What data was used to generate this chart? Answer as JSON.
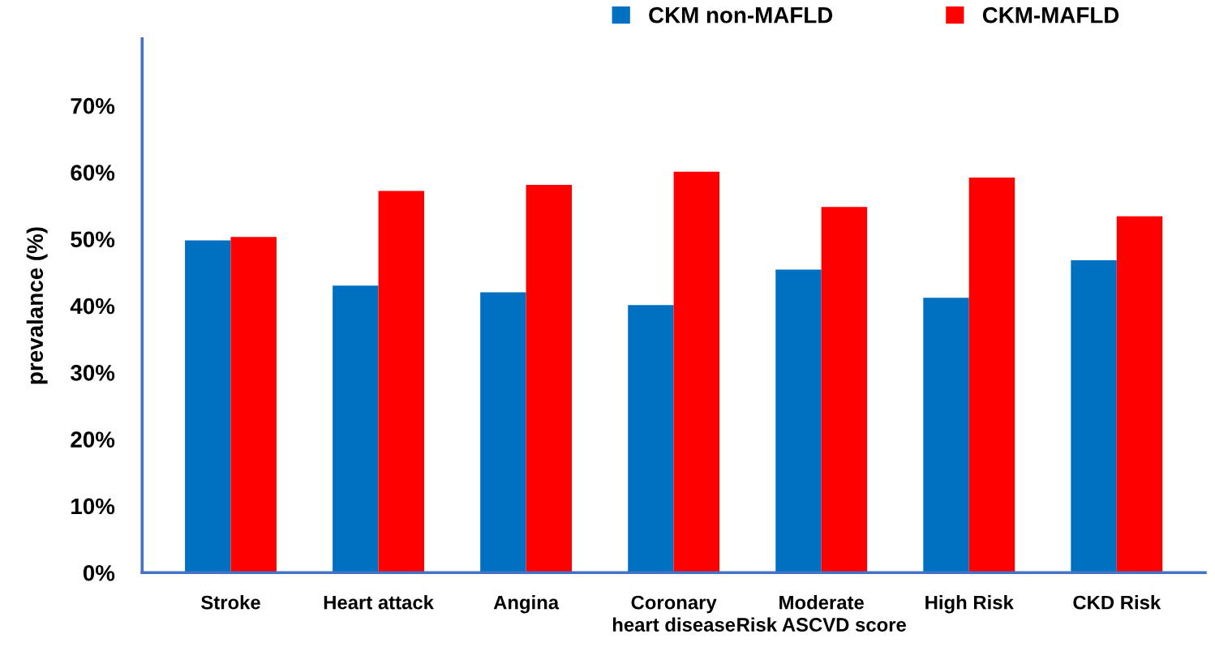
{
  "chart_data": {
    "type": "bar",
    "ylabel": "prevalance (%)",
    "categories": [
      "Stroke",
      "Heart attack",
      "Angina",
      "Coronary\nheart disease",
      "Moderate\nRisk ASCVD score",
      "High Risk",
      "CKD Risk"
    ],
    "series": [
      {
        "name": "CKM non-MAFLD",
        "color": "#0070c0",
        "values": [
          49.8,
          43.0,
          42.0,
          40.1,
          45.4,
          41.2,
          46.8
        ]
      },
      {
        "name": "CKM-MAFLD",
        "color": "#ff0000",
        "values": [
          50.3,
          57.2,
          58.1,
          60.1,
          54.8,
          59.2,
          53.4
        ]
      }
    ],
    "ylim": [
      0,
      80
    ],
    "yticks": [
      {
        "value": 0,
        "label": "0%"
      },
      {
        "value": 10,
        "label": "10%"
      },
      {
        "value": 20,
        "label": "20%"
      },
      {
        "value": 30,
        "label": "30%"
      },
      {
        "value": 40,
        "label": "40%"
      },
      {
        "value": 50,
        "label": "50%"
      },
      {
        "value": 60,
        "label": "60%"
      },
      {
        "value": 70,
        "label": "70%"
      }
    ],
    "grid": false,
    "legend": "top right"
  }
}
